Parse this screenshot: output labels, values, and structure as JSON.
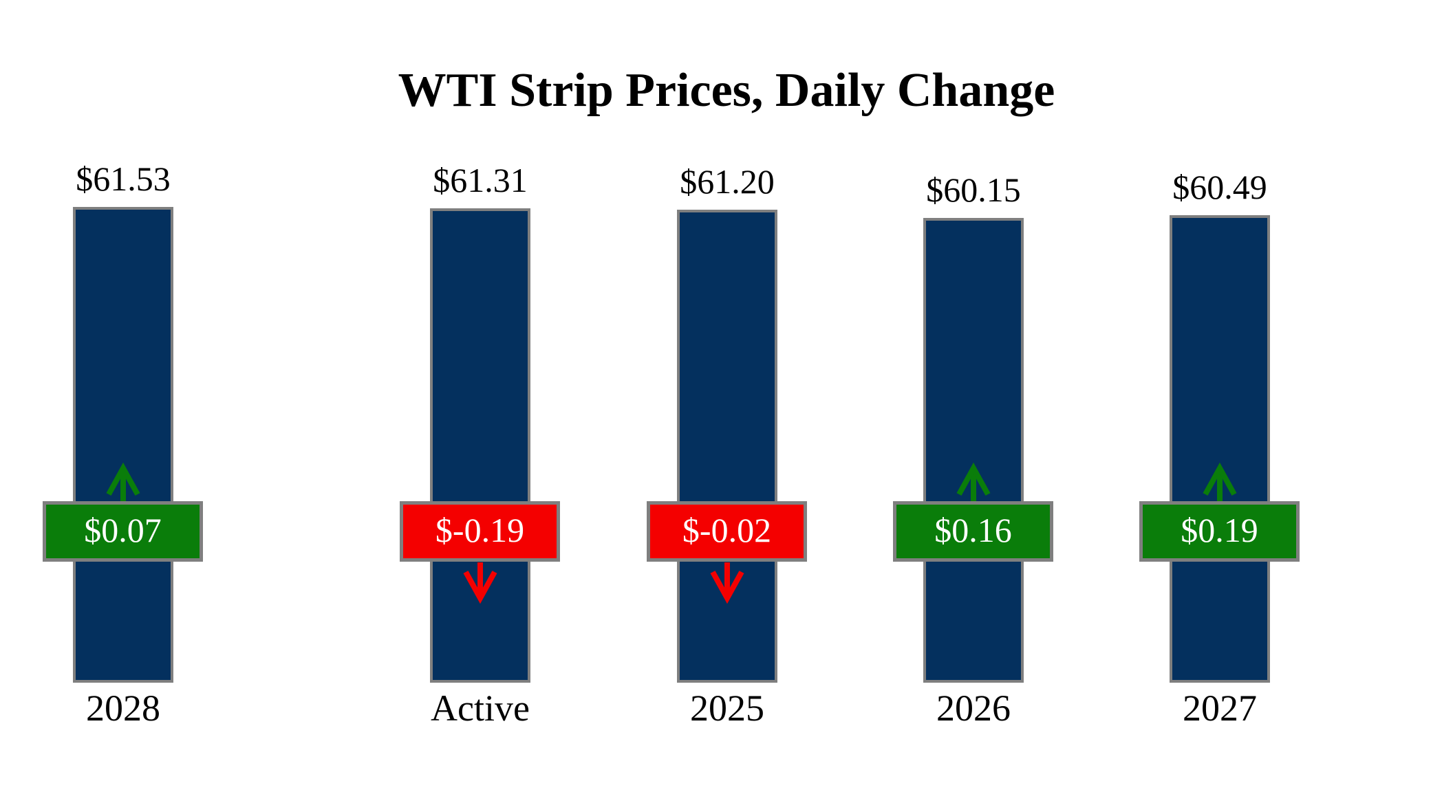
{
  "chart_data": {
    "type": "bar",
    "title": "WTI Strip Prices, Daily Change",
    "xlabel": "",
    "ylabel": "",
    "categories": [
      "Active",
      "2025",
      "2026",
      "2027",
      "2028"
    ],
    "values": [
      61.31,
      61.2,
      60.15,
      60.49,
      61.53
    ],
    "changes": [
      -0.19,
      -0.02,
      0.16,
      0.19,
      0.07
    ],
    "price_labels": [
      "$61.31",
      "$61.20",
      "$60.15",
      "$60.49",
      "$61.53"
    ],
    "change_labels": [
      "$-0.19",
      "$-0.02",
      "$0.16",
      "$0.19",
      "$0.07"
    ],
    "ylim": [
      0,
      61.53
    ],
    "grid": false,
    "legend": "none",
    "colors": {
      "bar": "#04305E",
      "border": "#7F7F7F",
      "negative": "#F40000",
      "positive": "#0A7D0A",
      "badge_text": "#FFFFFF"
    }
  }
}
